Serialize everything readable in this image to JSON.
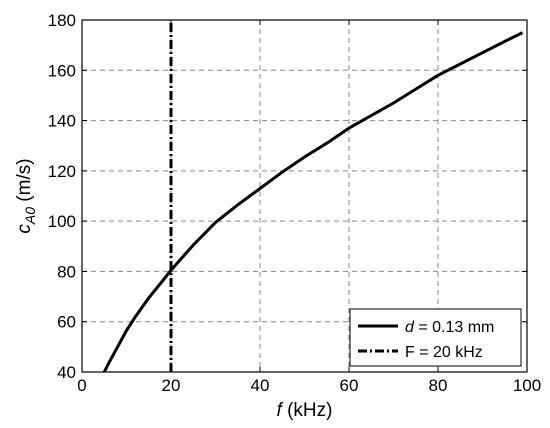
{
  "chart_data": {
    "type": "line",
    "xlabel": {
      "var": "f",
      "unit": " (kHz)"
    },
    "ylabel": {
      "var": "c",
      "sub": "A0",
      "unit": " (m/s)"
    },
    "xlim": [
      0,
      100
    ],
    "ylim": [
      40,
      180
    ],
    "xticks": [
      0,
      20,
      40,
      60,
      80,
      100
    ],
    "yticks": [
      40,
      60,
      80,
      100,
      120,
      140,
      160,
      180
    ],
    "grid": true,
    "legend_position": "bottom-right",
    "series": [
      {
        "name": {
          "var": "d",
          "rest": " = 0.13 mm"
        },
        "style": "solid",
        "color": "#000000",
        "x": [
          5,
          6,
          8,
          10,
          12,
          15,
          18,
          20,
          25,
          30,
          35,
          40,
          45,
          50,
          55,
          60,
          65,
          70,
          75,
          80,
          85,
          90,
          95,
          99
        ],
        "y": [
          40,
          43.5,
          50,
          56.5,
          62,
          69.5,
          76,
          80.5,
          90.5,
          99.5,
          106.5,
          113,
          119.5,
          125.5,
          131,
          137,
          142,
          147,
          152.5,
          158,
          162.5,
          167,
          171.5,
          175
        ]
      },
      {
        "name": "F = 20 kHz",
        "style": "dashdot",
        "color": "#000000",
        "x": [
          20,
          20
        ],
        "y": [
          40,
          180
        ]
      }
    ]
  }
}
